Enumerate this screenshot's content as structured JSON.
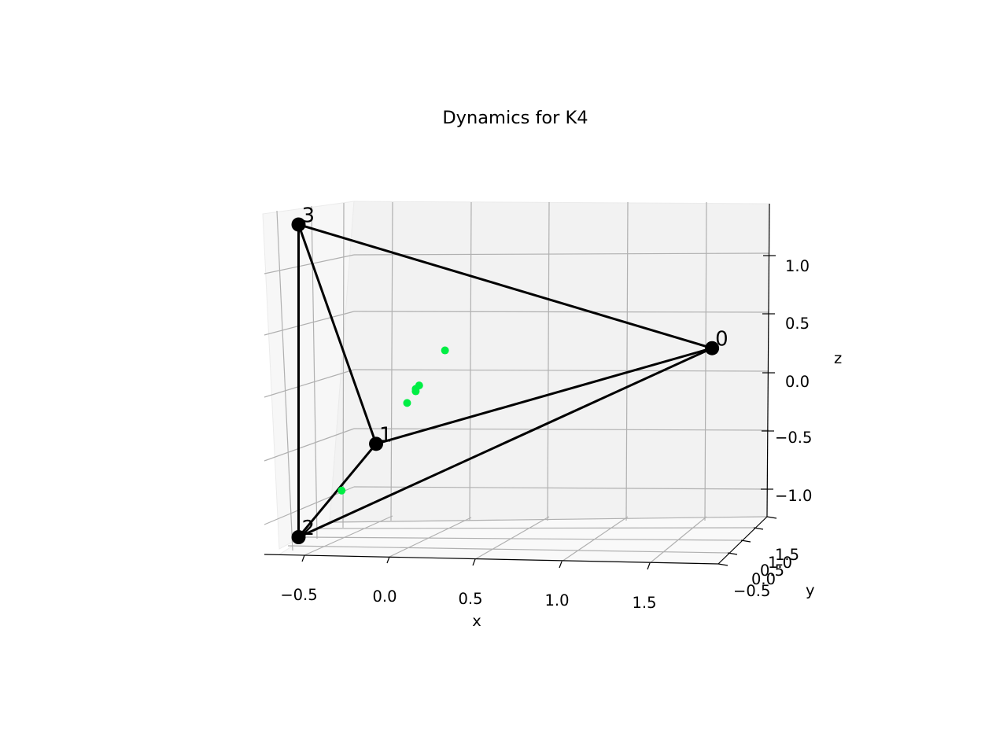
{
  "chart_data": {
    "type": "scatter",
    "projection": "3d",
    "title": "Dynamics for K4",
    "xlabel": "x",
    "ylabel": "y",
    "zlabel": "z",
    "grid": true,
    "x_ticks": [
      "−0.5",
      "0.0",
      "0.5",
      "1.0",
      "1.5"
    ],
    "y_ticks": [
      "−0.5",
      "0.0",
      "0.5",
      "1.0",
      "1.5"
    ],
    "y_tick_labels_rendered": [
      "1.5",
      "1.0",
      "0.5",
      "0.0",
      "−0.5"
    ],
    "z_ticks": [
      "1.0",
      "0.5",
      "0.0",
      "−0.5",
      "−1.0"
    ],
    "vertices": [
      {
        "label": "0",
        "x": 1.9,
        "y": 0.0,
        "z": 0.3
      },
      {
        "label": "1",
        "x": -0.05,
        "y": 0.0,
        "z": -0.55
      },
      {
        "label": "2",
        "x": -0.5,
        "y": 0.0,
        "z": -1.35
      },
      {
        "label": "3",
        "x": -0.5,
        "y": 0.0,
        "z": 1.3
      }
    ],
    "edges": [
      [
        "0",
        "1"
      ],
      [
        "0",
        "2"
      ],
      [
        "0",
        "3"
      ],
      [
        "1",
        "2"
      ],
      [
        "1",
        "3"
      ],
      [
        "2",
        "3"
      ]
    ],
    "vertex_color": "#000000",
    "edge_color": "#000000",
    "dynamics_points": {
      "color": "#00ee44",
      "points": [
        {
          "x": 0.35,
          "y": 0.0,
          "z": 0.25
        },
        {
          "x": 0.2,
          "y": 0.0,
          "z": -0.05
        },
        {
          "x": 0.18,
          "y": 0.0,
          "z": -0.08
        },
        {
          "x": 0.18,
          "y": 0.0,
          "z": -0.1
        },
        {
          "x": 0.13,
          "y": 0.0,
          "z": -0.2
        },
        {
          "x": -0.25,
          "y": 0.0,
          "z": -0.95
        }
      ]
    }
  }
}
